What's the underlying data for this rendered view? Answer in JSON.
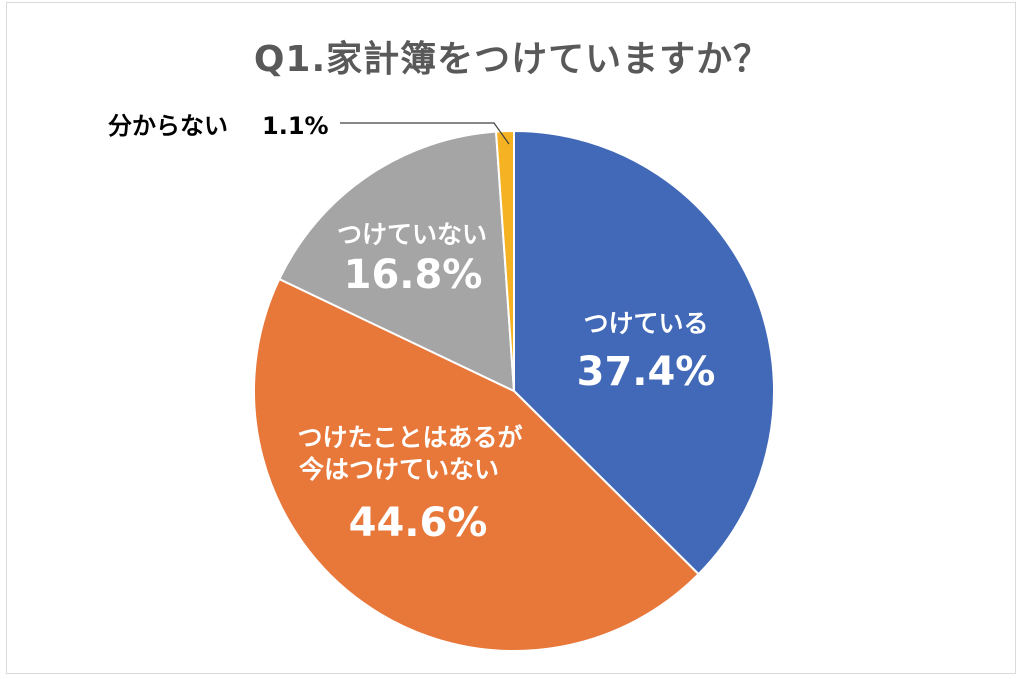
{
  "title": "Q1.家計簿をつけていますか？",
  "chart_data": {
    "type": "pie",
    "title": "Q1.家計簿をつけていますか？",
    "slices": [
      {
        "label_lines": [
          "つけている"
        ],
        "value_text": "37.4%",
        "value": 37.4,
        "color": "#4169B8"
      },
      {
        "label_lines": [
          "つけたことはあるが",
          "今はつけていない"
        ],
        "value_text": "44.6%",
        "value": 44.6,
        "color": "#E8773A"
      },
      {
        "label_lines": [
          "つけていない"
        ],
        "value_text": "16.8%",
        "value": 16.8,
        "color": "#A5A5A5"
      },
      {
        "label_lines": [
          "分からない"
        ],
        "value_text": "1.1%",
        "value": 1.1,
        "color": "#F5B324"
      }
    ],
    "start": "12 o'clock",
    "direction": "clockwise"
  }
}
